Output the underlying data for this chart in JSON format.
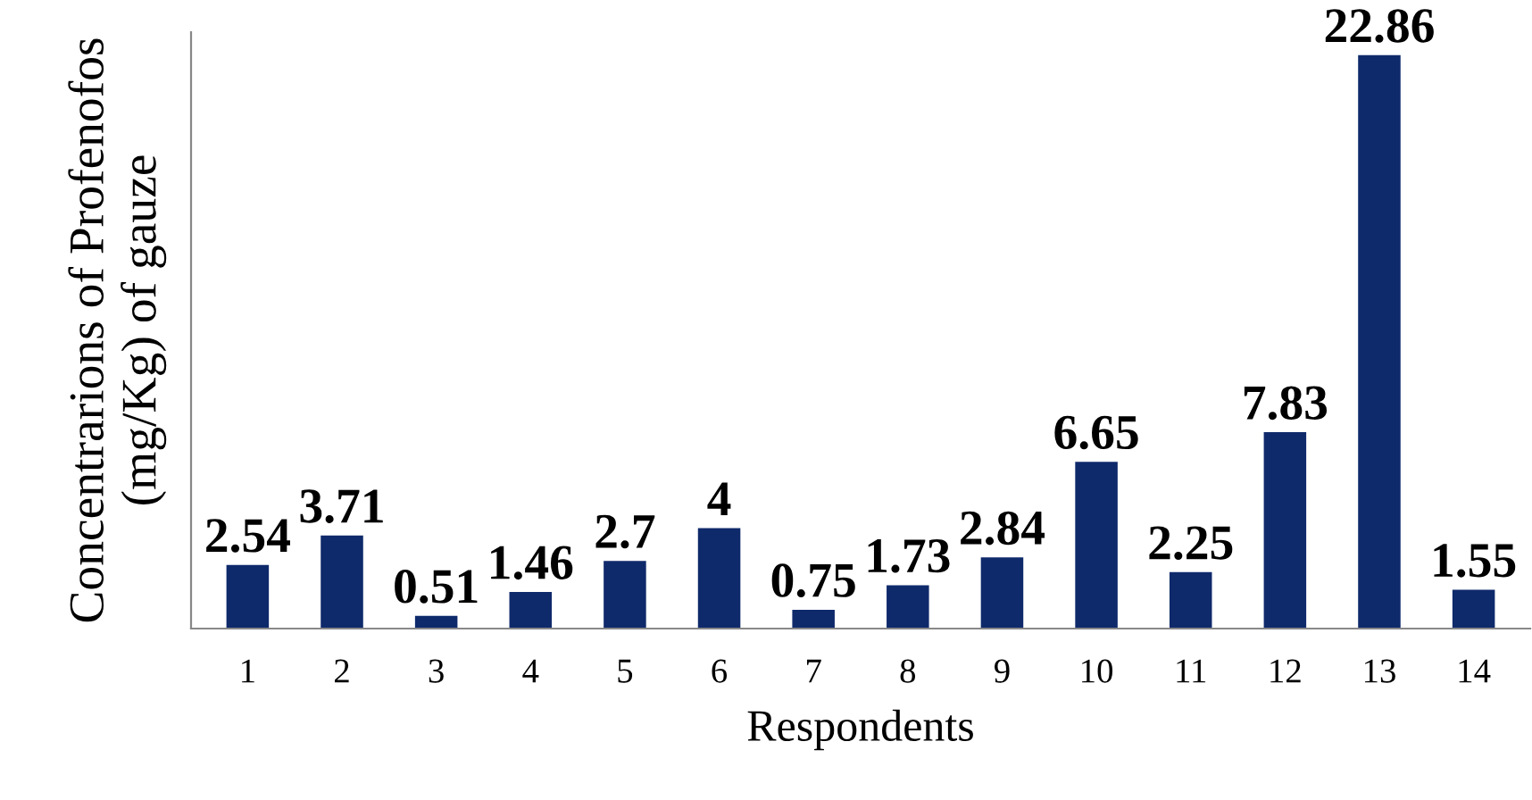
{
  "chart_data": {
    "type": "bar",
    "xlabel": "Respondents",
    "ylabel": "Concentrarions of Profenofos\n(mg/Kg) of gauze",
    "categories": [
      "1",
      "2",
      "3",
      "4",
      "5",
      "6",
      "7",
      "8",
      "9",
      "10",
      "11",
      "12",
      "13",
      "14"
    ],
    "values": [
      2.54,
      3.71,
      0.51,
      1.46,
      2.7,
      4,
      0.75,
      1.73,
      2.84,
      6.65,
      2.25,
      7.83,
      22.86,
      1.55
    ],
    "color": "#0f2a6b",
    "data_labels": true,
    "grid": false,
    "legend": false,
    "tick_labels": "x"
  }
}
